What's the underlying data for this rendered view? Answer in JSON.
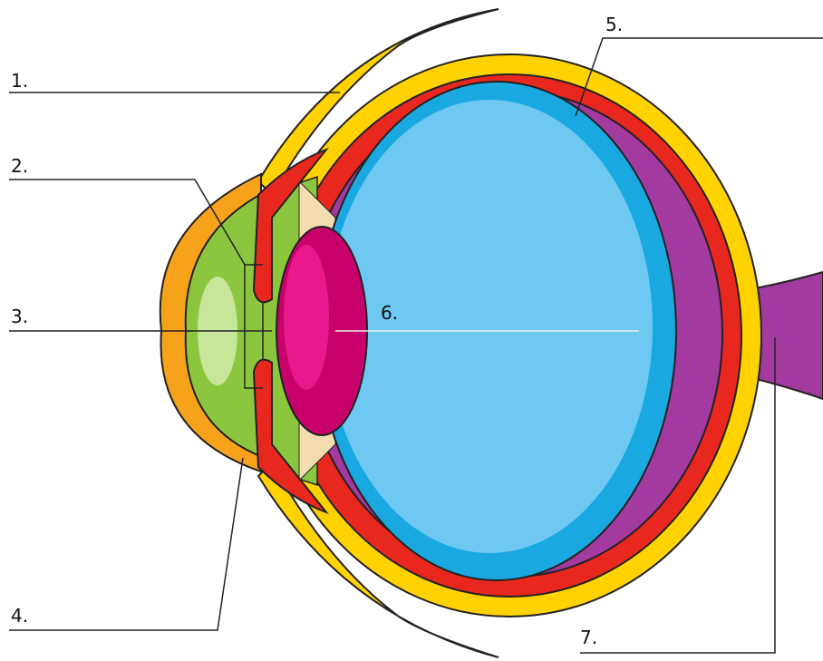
{
  "labels": [
    "1.",
    "2.",
    "3.",
    "4.",
    "5.",
    "6.",
    "7."
  ]
}
